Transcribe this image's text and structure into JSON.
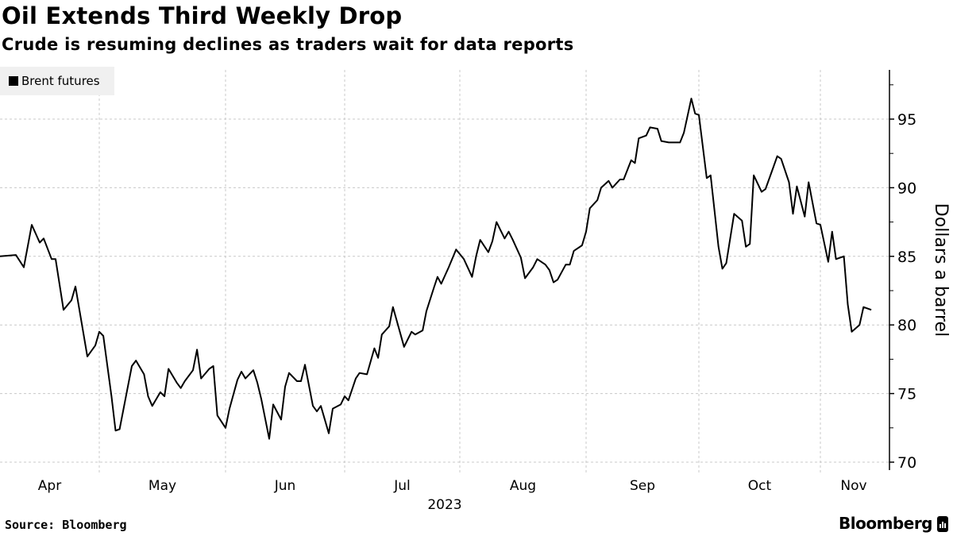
{
  "chart_data": {
    "type": "line",
    "title": "Oil Extends Third Weekly Drop",
    "subtitle": "Crude is resuming declines as traders wait for data reports",
    "ylabel": "Dollars a barrel",
    "xlabel": "2023",
    "ylim": [
      69.5,
      98.3
    ],
    "yticks": [
      70,
      75,
      80,
      85,
      90,
      95
    ],
    "xticks": [
      "Apr",
      "May",
      "Jun",
      "Jul",
      "Aug",
      "Sep",
      "Oct",
      "Nov"
    ],
    "grid": true,
    "legend_position": "top-left",
    "series": [
      {
        "name": "Brent futures",
        "color": "#000000",
        "points": [
          [
            "2023-04-06",
            85.0
          ],
          [
            "2023-04-10",
            85.1
          ],
          [
            "2023-04-12",
            84.2
          ],
          [
            "2023-04-14",
            87.3
          ],
          [
            "2023-04-16",
            86.0
          ],
          [
            "2023-04-17",
            86.3
          ],
          [
            "2023-04-19",
            84.8
          ],
          [
            "2023-04-20",
            84.8
          ],
          [
            "2023-04-22",
            81.1
          ],
          [
            "2023-04-24",
            81.8
          ],
          [
            "2023-04-25",
            82.8
          ],
          [
            "2023-04-28",
            77.7
          ],
          [
            "2023-04-30",
            78.5
          ],
          [
            "2023-05-01",
            79.5
          ],
          [
            "2023-05-02",
            79.2
          ],
          [
            "2023-05-04",
            74.8
          ],
          [
            "2023-05-05",
            72.3
          ],
          [
            "2023-05-06",
            72.4
          ],
          [
            "2023-05-09",
            77.0
          ],
          [
            "2023-05-10",
            77.4
          ],
          [
            "2023-05-12",
            76.4
          ],
          [
            "2023-05-13",
            74.8
          ],
          [
            "2023-05-14",
            74.1
          ],
          [
            "2023-05-16",
            75.1
          ],
          [
            "2023-05-17",
            74.8
          ],
          [
            "2023-05-18",
            76.8
          ],
          [
            "2023-05-20",
            75.8
          ],
          [
            "2023-05-21",
            75.4
          ],
          [
            "2023-05-22",
            75.9
          ],
          [
            "2023-05-24",
            76.7
          ],
          [
            "2023-05-25",
            78.2
          ],
          [
            "2023-05-26",
            76.1
          ],
          [
            "2023-05-28",
            76.8
          ],
          [
            "2023-05-29",
            77.0
          ],
          [
            "2023-05-30",
            73.4
          ],
          [
            "2023-06-01",
            72.5
          ],
          [
            "2023-06-02",
            73.9
          ],
          [
            "2023-06-04",
            76.0
          ],
          [
            "2023-06-05",
            76.6
          ],
          [
            "2023-06-06",
            76.1
          ],
          [
            "2023-06-08",
            76.7
          ],
          [
            "2023-06-09",
            75.8
          ],
          [
            "2023-06-10",
            74.6
          ],
          [
            "2023-06-12",
            71.7
          ],
          [
            "2023-06-13",
            74.2
          ],
          [
            "2023-06-15",
            73.1
          ],
          [
            "2023-06-16",
            75.5
          ],
          [
            "2023-06-17",
            76.5
          ],
          [
            "2023-06-19",
            75.9
          ],
          [
            "2023-06-20",
            75.9
          ],
          [
            "2023-06-21",
            77.1
          ],
          [
            "2023-06-23",
            74.1
          ],
          [
            "2023-06-24",
            73.7
          ],
          [
            "2023-06-25",
            74.1
          ],
          [
            "2023-06-27",
            72.1
          ],
          [
            "2023-06-28",
            73.9
          ],
          [
            "2023-06-30",
            74.2
          ],
          [
            "2023-07-01",
            74.8
          ],
          [
            "2023-07-02",
            74.5
          ],
          [
            "2023-07-04",
            76.1
          ],
          [
            "2023-07-05",
            76.5
          ],
          [
            "2023-07-07",
            76.4
          ],
          [
            "2023-07-09",
            78.3
          ],
          [
            "2023-07-10",
            77.6
          ],
          [
            "2023-07-11",
            79.3
          ],
          [
            "2023-07-13",
            79.9
          ],
          [
            "2023-07-14",
            81.3
          ],
          [
            "2023-07-17",
            78.4
          ],
          [
            "2023-07-19",
            79.5
          ],
          [
            "2023-07-20",
            79.3
          ],
          [
            "2023-07-22",
            79.6
          ],
          [
            "2023-07-23",
            81.0
          ],
          [
            "2023-07-25",
            82.7
          ],
          [
            "2023-07-26",
            83.5
          ],
          [
            "2023-07-27",
            83.0
          ],
          [
            "2023-07-29",
            84.2
          ],
          [
            "2023-07-31",
            85.5
          ],
          [
            "2023-08-02",
            84.8
          ],
          [
            "2023-08-04",
            83.5
          ],
          [
            "2023-08-05",
            85.0
          ],
          [
            "2023-08-06",
            86.2
          ],
          [
            "2023-08-08",
            85.3
          ],
          [
            "2023-08-09",
            86.1
          ],
          [
            "2023-08-10",
            87.5
          ],
          [
            "2023-08-12",
            86.3
          ],
          [
            "2023-08-13",
            86.8
          ],
          [
            "2023-08-14",
            86.2
          ],
          [
            "2023-08-16",
            84.9
          ],
          [
            "2023-08-17",
            83.4
          ],
          [
            "2023-08-19",
            84.2
          ],
          [
            "2023-08-20",
            84.8
          ],
          [
            "2023-08-22",
            84.4
          ],
          [
            "2023-08-23",
            84.0
          ],
          [
            "2023-08-24",
            83.1
          ],
          [
            "2023-08-25",
            83.3
          ],
          [
            "2023-08-27",
            84.4
          ],
          [
            "2023-08-28",
            84.4
          ],
          [
            "2023-08-29",
            85.4
          ],
          [
            "2023-08-31",
            85.8
          ],
          [
            "2023-09-01",
            86.8
          ],
          [
            "2023-09-02",
            88.5
          ],
          [
            "2023-09-04",
            89.1
          ],
          [
            "2023-09-05",
            90.0
          ],
          [
            "2023-09-07",
            90.5
          ],
          [
            "2023-09-08",
            90.0
          ],
          [
            "2023-09-10",
            90.6
          ],
          [
            "2023-09-11",
            90.6
          ],
          [
            "2023-09-13",
            92.0
          ],
          [
            "2023-09-14",
            91.8
          ],
          [
            "2023-09-15",
            93.6
          ],
          [
            "2023-09-17",
            93.8
          ],
          [
            "2023-09-18",
            94.4
          ],
          [
            "2023-09-20",
            94.3
          ],
          [
            "2023-09-21",
            93.4
          ],
          [
            "2023-09-23",
            93.3
          ],
          [
            "2023-09-26",
            93.3
          ],
          [
            "2023-09-27",
            94.0
          ],
          [
            "2023-09-29",
            96.5
          ],
          [
            "2023-09-30",
            95.4
          ],
          [
            "2023-10-01",
            95.3
          ],
          [
            "2023-10-03",
            90.7
          ],
          [
            "2023-10-04",
            90.9
          ],
          [
            "2023-10-06",
            85.7
          ],
          [
            "2023-10-07",
            84.1
          ],
          [
            "2023-10-08",
            84.5
          ],
          [
            "2023-10-10",
            88.1
          ],
          [
            "2023-10-12",
            87.6
          ],
          [
            "2023-10-13",
            85.7
          ],
          [
            "2023-10-14",
            85.9
          ],
          [
            "2023-10-15",
            90.9
          ],
          [
            "2023-10-17",
            89.7
          ],
          [
            "2023-10-18",
            89.9
          ],
          [
            "2023-10-20",
            91.5
          ],
          [
            "2023-10-21",
            92.3
          ],
          [
            "2023-10-22",
            92.1
          ],
          [
            "2023-10-24",
            90.4
          ],
          [
            "2023-10-25",
            88.1
          ],
          [
            "2023-10-26",
            90.1
          ],
          [
            "2023-10-28",
            87.9
          ],
          [
            "2023-10-29",
            90.4
          ],
          [
            "2023-10-31",
            87.4
          ],
          [
            "2023-11-01",
            87.3
          ],
          [
            "2023-11-03",
            84.6
          ],
          [
            "2023-11-04",
            86.8
          ],
          [
            "2023-11-05",
            84.8
          ],
          [
            "2023-11-07",
            85.0
          ],
          [
            "2023-11-08",
            81.5
          ],
          [
            "2023-11-09",
            79.5
          ],
          [
            "2023-11-11",
            80.0
          ],
          [
            "2023-11-12",
            81.3
          ],
          [
            "2023-11-14",
            81.1
          ]
        ]
      }
    ]
  },
  "footer": {
    "source": "Source: Bloomberg",
    "brand": "Bloomberg"
  },
  "colors": {
    "line": "#000000",
    "grid": "#c8c8c8",
    "legend_bg": "#f0f0f0"
  }
}
